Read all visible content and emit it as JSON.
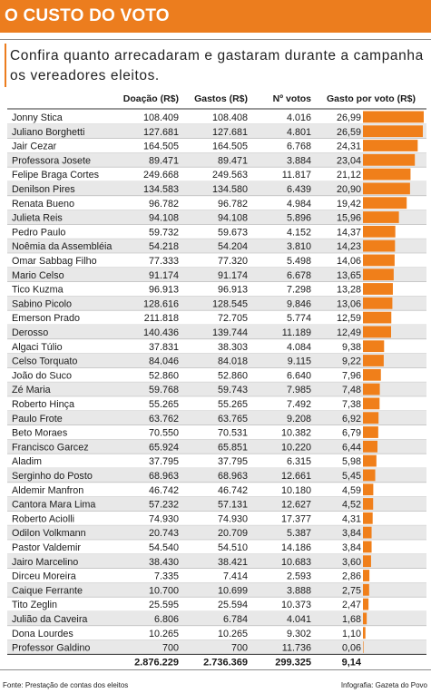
{
  "header": {
    "title": "O CUSTO DO VOTO"
  },
  "subtitle": "Confira quanto arrecadaram e gastaram durante a campanha os vereadores eleitos.",
  "footer": {
    "source": "Fonte: Prestação de contas dos eleitos",
    "credit": "Infografia: Gazeta do Povo"
  },
  "colors": {
    "accent": "#ec7d1e",
    "bar": "#f07f1a",
    "stripe": "#e8e8e8",
    "header_bg": "#ffffff"
  },
  "chart_data": {
    "type": "table",
    "columns": [
      "Doação (R$)",
      "Gastos (R$)",
      "Nº votos",
      "Gasto por voto (R$)"
    ],
    "bar_column": "Gasto por voto (R$)",
    "rows": [
      {
        "name": "Jonny Stica",
        "doacao": "108.409",
        "gastos": "108.408",
        "votos": "4.016",
        "gasto_voto": "26,99",
        "value": 26.99
      },
      {
        "name": "Juliano Borghetti",
        "doacao": "127.681",
        "gastos": "127.681",
        "votos": "4.801",
        "gasto_voto": "26,59",
        "value": 26.59
      },
      {
        "name": "Jair Cezar",
        "doacao": "164.505",
        "gastos": "164.505",
        "votos": "6.768",
        "gasto_voto": "24,31",
        "value": 24.31
      },
      {
        "name": "Professora Josete",
        "doacao": "89.471",
        "gastos": "89.471",
        "votos": "3.884",
        "gasto_voto": "23,04",
        "value": 23.04
      },
      {
        "name": "Felipe Braga Cortes",
        "doacao": "249.668",
        "gastos": "249.563",
        "votos": "11.817",
        "gasto_voto": "21,12",
        "value": 21.12
      },
      {
        "name": "Denilson Pires",
        "doacao": "134.583",
        "gastos": "134.580",
        "votos": "6.439",
        "gasto_voto": "20,90",
        "value": 20.9
      },
      {
        "name": "Renata Bueno",
        "doacao": "96.782",
        "gastos": "96.782",
        "votos": "4.984",
        "gasto_voto": "19,42",
        "value": 19.42
      },
      {
        "name": "Julieta Reis",
        "doacao": "94.108",
        "gastos": "94.108",
        "votos": "5.896",
        "gasto_voto": "15,96",
        "value": 15.96
      },
      {
        "name": "Pedro Paulo",
        "doacao": "59.732",
        "gastos": "59.673",
        "votos": "4.152",
        "gasto_voto": "14,37",
        "value": 14.37
      },
      {
        "name": "Noêmia da Assembléia",
        "doacao": "54.218",
        "gastos": "54.204",
        "votos": "3.810",
        "gasto_voto": "14,23",
        "value": 14.23
      },
      {
        "name": "Omar Sabbag Filho",
        "doacao": "77.333",
        "gastos": "77.320",
        "votos": "5.498",
        "gasto_voto": "14,06",
        "value": 14.06
      },
      {
        "name": "Mario Celso",
        "doacao": "91.174",
        "gastos": "91.174",
        "votos": "6.678",
        "gasto_voto": "13,65",
        "value": 13.65
      },
      {
        "name": "Tico Kuzma",
        "doacao": "96.913",
        "gastos": "96.913",
        "votos": "7.298",
        "gasto_voto": "13,28",
        "value": 13.28
      },
      {
        "name": "Sabino Picolo",
        "doacao": "128.616",
        "gastos": "128.545",
        "votos": "9.846",
        "gasto_voto": "13,06",
        "value": 13.06
      },
      {
        "name": "Emerson Prado",
        "doacao": "211.818",
        "gastos": "72.705",
        "votos": "5.774",
        "gasto_voto": "12,59",
        "value": 12.59
      },
      {
        "name": "Derosso",
        "doacao": "140.436",
        "gastos": "139.744",
        "votos": "11.189",
        "gasto_voto": "12,49",
        "value": 12.49
      },
      {
        "name": "Algaci Túlio",
        "doacao": "37.831",
        "gastos": "38.303",
        "votos": "4.084",
        "gasto_voto": "9,38",
        "value": 9.38
      },
      {
        "name": "Celso Torquato",
        "doacao": "84.046",
        "gastos": "84.018",
        "votos": "9.115",
        "gasto_voto": "9,22",
        "value": 9.22
      },
      {
        "name": "João do Suco",
        "doacao": "52.860",
        "gastos": "52.860",
        "votos": "6.640",
        "gasto_voto": "7,96",
        "value": 7.96
      },
      {
        "name": "Zé Maria",
        "doacao": "59.768",
        "gastos": "59.743",
        "votos": "7.985",
        "gasto_voto": "7,48",
        "value": 7.48
      },
      {
        "name": "Roberto Hinça",
        "doacao": "55.265",
        "gastos": "55.265",
        "votos": "7.492",
        "gasto_voto": "7,38",
        "value": 7.38
      },
      {
        "name": "Paulo Frote",
        "doacao": "63.762",
        "gastos": "63.765",
        "votos": "9.208",
        "gasto_voto": "6,92",
        "value": 6.92
      },
      {
        "name": "Beto Moraes",
        "doacao": "70.550",
        "gastos": "70.531",
        "votos": "10.382",
        "gasto_voto": "6,79",
        "value": 6.79
      },
      {
        "name": "Francisco Garcez",
        "doacao": "65.924",
        "gastos": "65.851",
        "votos": "10.220",
        "gasto_voto": "6,44",
        "value": 6.44
      },
      {
        "name": "Aladim",
        "doacao": "37.795",
        "gastos": "37.795",
        "votos": "6.315",
        "gasto_voto": "5,98",
        "value": 5.98
      },
      {
        "name": "Serginho do Posto",
        "doacao": "68.963",
        "gastos": "68.963",
        "votos": "12.661",
        "gasto_voto": "5,45",
        "value": 5.45
      },
      {
        "name": "Aldemir Manfron",
        "doacao": "46.742",
        "gastos": "46.742",
        "votos": "10.180",
        "gasto_voto": "4,59",
        "value": 4.59
      },
      {
        "name": "Cantora Mara Lima",
        "doacao": "57.232",
        "gastos": "57.131",
        "votos": "12.627",
        "gasto_voto": "4,52",
        "value": 4.52
      },
      {
        "name": "Roberto Aciolli",
        "doacao": "74.930",
        "gastos": "74.930",
        "votos": "17.377",
        "gasto_voto": "4,31",
        "value": 4.31
      },
      {
        "name": "Odilon Volkmann",
        "doacao": "20.743",
        "gastos": "20.709",
        "votos": "5.387",
        "gasto_voto": "3,84",
        "value": 3.84
      },
      {
        "name": "Pastor Valdemir",
        "doacao": "54.540",
        "gastos": "54.510",
        "votos": "14.186",
        "gasto_voto": "3,84",
        "value": 3.84
      },
      {
        "name": "Jairo Marcelino",
        "doacao": "38.430",
        "gastos": "38.421",
        "votos": "10.683",
        "gasto_voto": "3,60",
        "value": 3.6
      },
      {
        "name": "Dirceu Moreira",
        "doacao": "7.335",
        "gastos": "7.414",
        "votos": "2.593",
        "gasto_voto": "2,86",
        "value": 2.86
      },
      {
        "name": "Caique Ferrante",
        "doacao": "10.700",
        "gastos": "10.699",
        "votos": "3.888",
        "gasto_voto": "2,75",
        "value": 2.75
      },
      {
        "name": "Tito Zeglin",
        "doacao": "25.595",
        "gastos": "25.594",
        "votos": "10.373",
        "gasto_voto": "2,47",
        "value": 2.47
      },
      {
        "name": "Julião da Caveira",
        "doacao": "6.806",
        "gastos": "6.784",
        "votos": "4.041",
        "gasto_voto": "1,68",
        "value": 1.68
      },
      {
        "name": "Dona Lourdes",
        "doacao": "10.265",
        "gastos": "10.265",
        "votos": "9.302",
        "gasto_voto": "1,10",
        "value": 1.1
      },
      {
        "name": "Professor Galdino",
        "doacao": "700",
        "gastos": "700",
        "votos": "11.736",
        "gasto_voto": "0,06",
        "value": 0.06
      }
    ],
    "totals": {
      "doacao": "2.876.229",
      "gastos": "2.736.369",
      "votos": "299.325",
      "gasto_voto": "9,14"
    },
    "value_max": 26.99
  }
}
